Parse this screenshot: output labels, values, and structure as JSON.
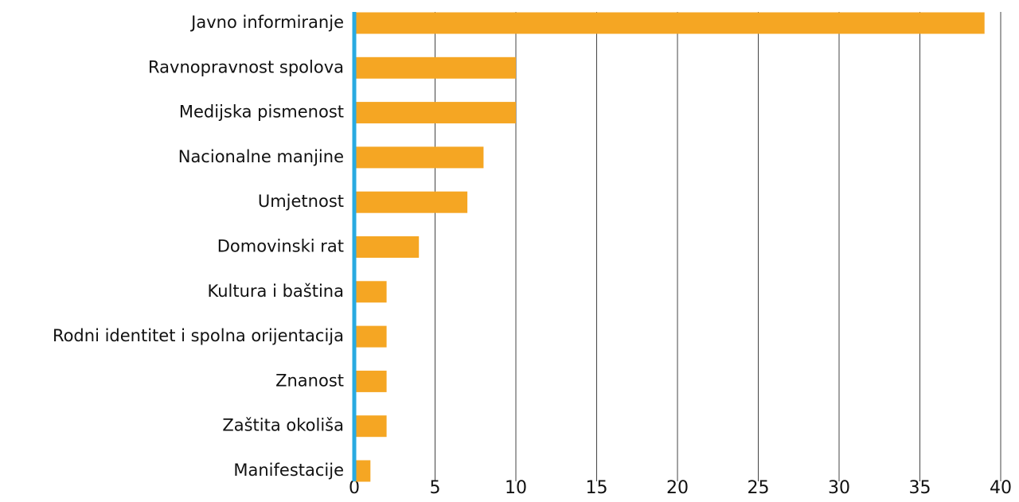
{
  "chart_data": {
    "type": "bar",
    "orientation": "horizontal",
    "categories": [
      "Javno informiranje",
      "Ravnopravnost spolova",
      "Medijska pismenost",
      "Nacionalne manjine",
      "Umjetnost",
      "Domovinski rat",
      "Kultura i baština",
      "Rodni identitet i spolna orijentacija",
      "Znanost",
      "Zaštita okoliša",
      "Manifestacije"
    ],
    "values": [
      39,
      10,
      10,
      8,
      7,
      4,
      2,
      2,
      2,
      2,
      1
    ],
    "color": "#f5a623",
    "xlim": [
      0,
      40
    ],
    "xticks": [
      0,
      5,
      10,
      15,
      20,
      25,
      30,
      35,
      40
    ],
    "grid": true
  }
}
